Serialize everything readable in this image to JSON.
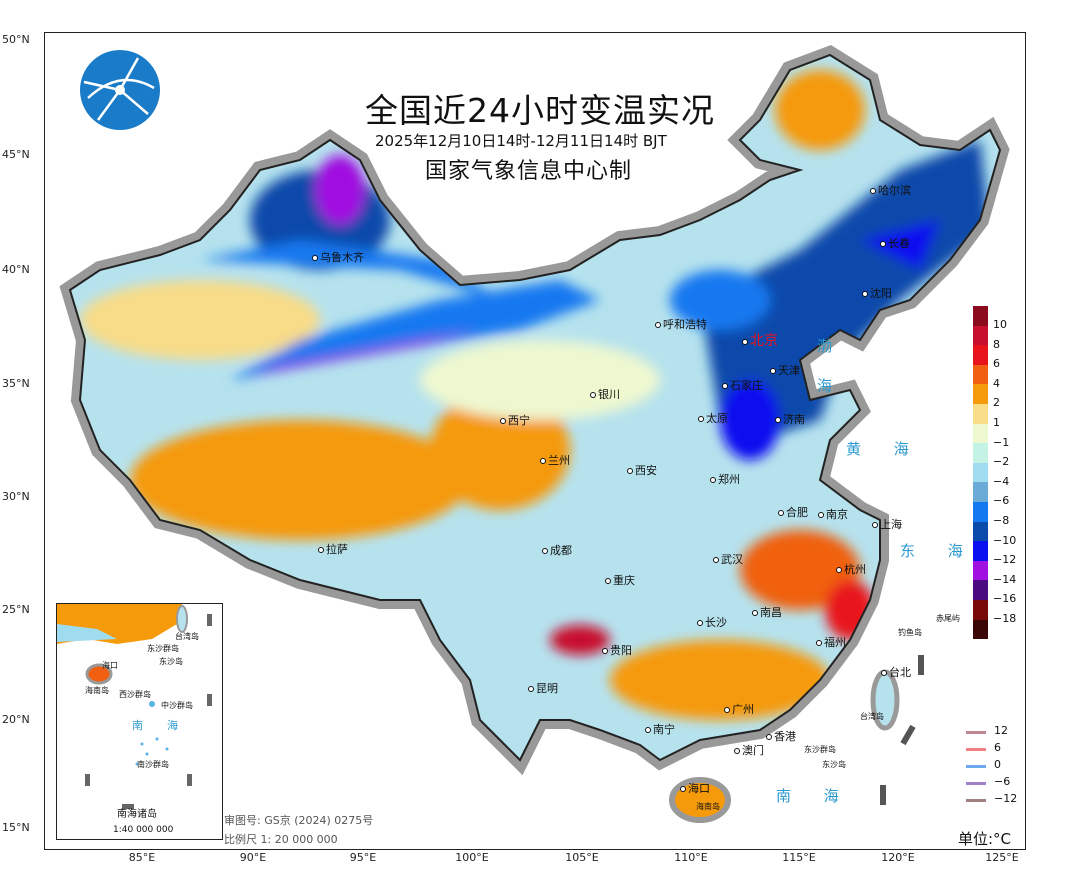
{
  "header": {
    "title": "全国近24小时变温实况",
    "subtitle": "2025年12月10日14时-12月11日14时 BJT",
    "maker": "国家气象信息中心制",
    "logo": "cma-globe-logo"
  },
  "axes": {
    "lat_labels": [
      "50°N",
      "45°N",
      "40°N",
      "35°N",
      "30°N",
      "25°N",
      "20°N",
      "15°N"
    ],
    "lon_labels": [
      "85°E",
      "90°E",
      "95°E",
      "100°E",
      "105°E",
      "110°E",
      "115°E",
      "120°E",
      "125°E"
    ]
  },
  "cities": [
    {
      "name": "乌鲁木齐"
    },
    {
      "name": "哈尔滨"
    },
    {
      "name": "长春"
    },
    {
      "name": "沈阳"
    },
    {
      "name": "呼和浩特"
    },
    {
      "name": "北京"
    },
    {
      "name": "天津"
    },
    {
      "name": "石家庄"
    },
    {
      "name": "太原"
    },
    {
      "name": "济南"
    },
    {
      "name": "银川"
    },
    {
      "name": "西宁"
    },
    {
      "name": "兰州"
    },
    {
      "name": "西安"
    },
    {
      "name": "郑州"
    },
    {
      "name": "合肥"
    },
    {
      "name": "南京"
    },
    {
      "name": "上海"
    },
    {
      "name": "拉萨"
    },
    {
      "name": "成都"
    },
    {
      "name": "武汉"
    },
    {
      "name": "杭州"
    },
    {
      "name": "重庆"
    },
    {
      "name": "南昌"
    },
    {
      "name": "长沙"
    },
    {
      "name": "福州"
    },
    {
      "name": "贵阳"
    },
    {
      "name": "台北"
    },
    {
      "name": "昆明"
    },
    {
      "name": "南宁"
    },
    {
      "name": "广州"
    },
    {
      "name": "香港"
    },
    {
      "name": "澳门"
    },
    {
      "name": "海口"
    }
  ],
  "places": {
    "taiwan": "台湾岛",
    "hainan": "海南岛",
    "diaoyu": "钓鱼岛",
    "chiwei": "赤尾屿",
    "dongsha_group": "东沙群岛",
    "dongsha": "东沙岛"
  },
  "seas": {
    "bohai": "渤 海",
    "huanghai": "黄 海",
    "donghai": "东 海",
    "nanhai": "南 海"
  },
  "colorbar": {
    "labels": [
      "10",
      "8",
      "6",
      "4",
      "2",
      "1",
      "−1",
      "−2",
      "−4",
      "−6",
      "−8",
      "−10",
      "−12",
      "−14",
      "−16",
      "−18"
    ],
    "colors": [
      "#8b0a1e",
      "#c8102e",
      "#e8141c",
      "#f06010",
      "#f59a0a",
      "#f8dc88",
      "#eef8d0",
      "#c4f2e4",
      "#a0dcf0",
      "#6aaad6",
      "#1478f0",
      "#0a4aaa",
      "#0a10f0",
      "#a010e0",
      "#4a0a80",
      "#780a0a",
      "#3a0606"
    ]
  },
  "contour_legend": [
    {
      "label": "12",
      "color": "#c08890"
    },
    {
      "label": "6",
      "color": "#f08080"
    },
    {
      "label": "0",
      "color": "#70a8f0"
    },
    {
      "label": "−6",
      "color": "#a080c8"
    },
    {
      "label": "−12",
      "color": "#a08080"
    }
  ],
  "unit": "单位:°C",
  "notes": {
    "approval": "审图号: GS京 (2024) 0275号",
    "scale": "比例尺 1: 20 000 000"
  },
  "inset": {
    "title": "南海诸岛",
    "scale": "1:40 000 000",
    "places": [
      "海口",
      "海南岛",
      "台湾岛",
      "东沙群岛",
      "东沙岛",
      "西沙群岛",
      "中沙群岛",
      "南沙群岛",
      "南",
      "海"
    ]
  }
}
